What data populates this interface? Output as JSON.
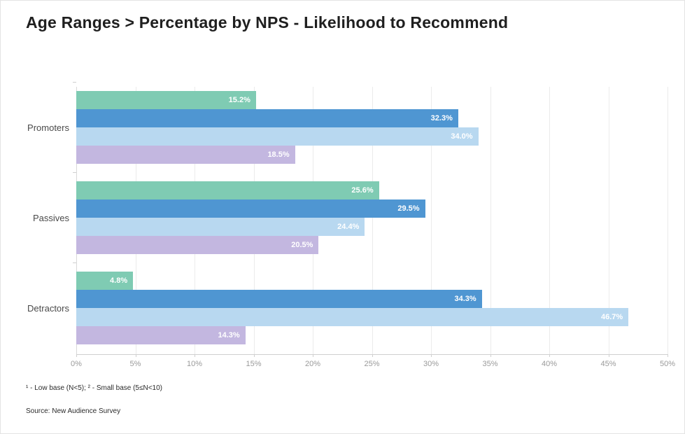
{
  "title": "Age Ranges > Percentage by NPS - Likelihood to Recommend",
  "footnote": "¹ - Low base (N<5);   ² - Small base (5≤N<10)",
  "source": "Source: New Audience Survey",
  "chart_data": {
    "type": "bar",
    "orientation": "horizontal",
    "title": "Age Ranges > Percentage by NPS - Likelihood to Recommend",
    "categories": [
      "Promoters",
      "Passives",
      "Detractors"
    ],
    "series": [
      {
        "name": "series-1",
        "color": "#7fcbb3",
        "values": [
          15.2,
          25.6,
          4.8
        ]
      },
      {
        "name": "series-2",
        "color": "#4f96d2",
        "values": [
          32.3,
          29.5,
          34.3
        ]
      },
      {
        "name": "series-3",
        "color": "#b8d8f0",
        "values": [
          34.0,
          24.4,
          46.7
        ]
      },
      {
        "name": "series-4",
        "color": "#c3b7e0",
        "values": [
          18.5,
          20.5,
          14.3
        ]
      }
    ],
    "value_suffix": "%",
    "xlim": [
      0,
      50
    ],
    "x_ticks": [
      "0%",
      "5%",
      "10%",
      "15%",
      "20%",
      "25%",
      "30%",
      "35%",
      "40%",
      "45%",
      "50%"
    ],
    "grid": "vertical",
    "legend": "none",
    "bar_value_labels": "inside-right, white"
  }
}
